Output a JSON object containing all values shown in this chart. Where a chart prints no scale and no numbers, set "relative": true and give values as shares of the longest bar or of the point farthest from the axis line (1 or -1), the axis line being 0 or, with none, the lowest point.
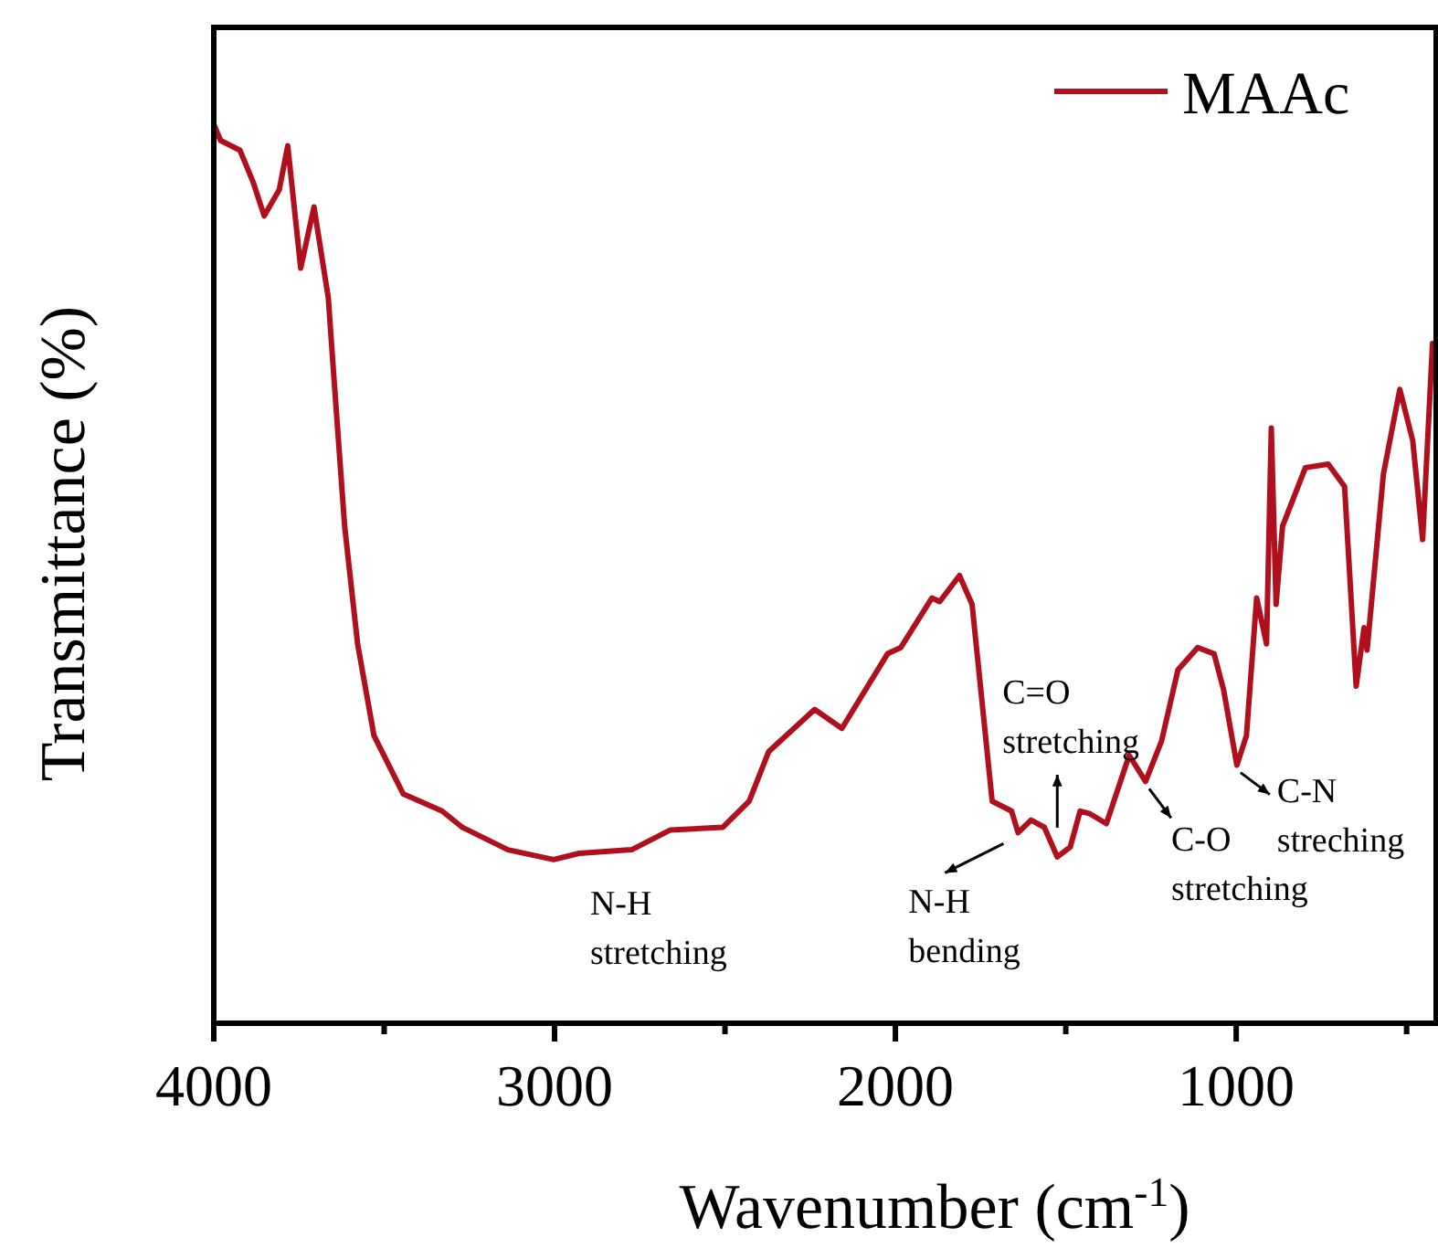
{
  "chart_data": {
    "type": "line",
    "relative": true,
    "xlabel": "Wavenumber (cm$^{-1}$)",
    "ylabel": "Transmittance (%)",
    "xlim": [
      4000,
      400
    ],
    "xticks": [
      4000,
      {
        "value": 3500,
        "label": null
      },
      3000,
      {
        "value": 2500,
        "label": null
      },
      2000,
      {
        "value": 1500,
        "label": null
      },
      1000,
      {
        "value": 500,
        "label": null
      }
    ],
    "legend": "top right",
    "series": [
      {
        "name": "MAAc",
        "color": "#b0101e",
        "x": [
          4000,
          3980,
          3923,
          3884,
          3852,
          3808,
          3783,
          3745,
          3706,
          3664,
          3645,
          3616,
          3578,
          3530,
          3444,
          3330,
          3271,
          3137,
          3003,
          2928,
          2774,
          2660,
          2506,
          2429,
          2372,
          2237,
          2157,
          2023,
          1984,
          1893,
          1870,
          1812,
          1775,
          1716,
          1659,
          1640,
          1602,
          1563,
          1525,
          1487,
          1458,
          1429,
          1381,
          1314,
          1266,
          1219,
          1171,
          1113,
          1065,
          1037,
          998,
          970,
          940,
          911,
          897,
          883,
          864,
          797,
          730,
          682,
          648,
          625,
          616,
          568,
          520,
          482,
          453,
          424
        ],
        "values": [
          1.0,
          0.982,
          0.971,
          0.935,
          0.898,
          0.927,
          0.976,
          0.84,
          0.908,
          0.807,
          0.705,
          0.553,
          0.422,
          0.32,
          0.255,
          0.236,
          0.218,
          0.193,
          0.182,
          0.189,
          0.193,
          0.215,
          0.218,
          0.247,
          0.302,
          0.349,
          0.328,
          0.411,
          0.418,
          0.473,
          0.469,
          0.498,
          0.466,
          0.247,
          0.236,
          0.212,
          0.226,
          0.218,
          0.185,
          0.196,
          0.236,
          0.233,
          0.222,
          0.298,
          0.269,
          0.314,
          0.393,
          0.418,
          0.411,
          0.371,
          0.287,
          0.32,
          0.473,
          0.422,
          0.662,
          0.466,
          0.553,
          0.618,
          0.622,
          0.597,
          0.375,
          0.44,
          0.415,
          0.611,
          0.705,
          0.648,
          0.538,
          0.756
        ]
      }
    ],
    "annotations": [
      {
        "text": "N-H stretching",
        "x": 3003,
        "y": 0.182
      },
      {
        "text": "N-H bending",
        "x": 1640,
        "y": 0.212
      },
      {
        "text": "C=O stretching",
        "x": 1525,
        "y": 0.185
      },
      {
        "text": "C-O stretching",
        "x": 1266,
        "y": 0.269
      },
      {
        "text": "C-N streching",
        "x": 998,
        "y": 0.287
      }
    ]
  }
}
